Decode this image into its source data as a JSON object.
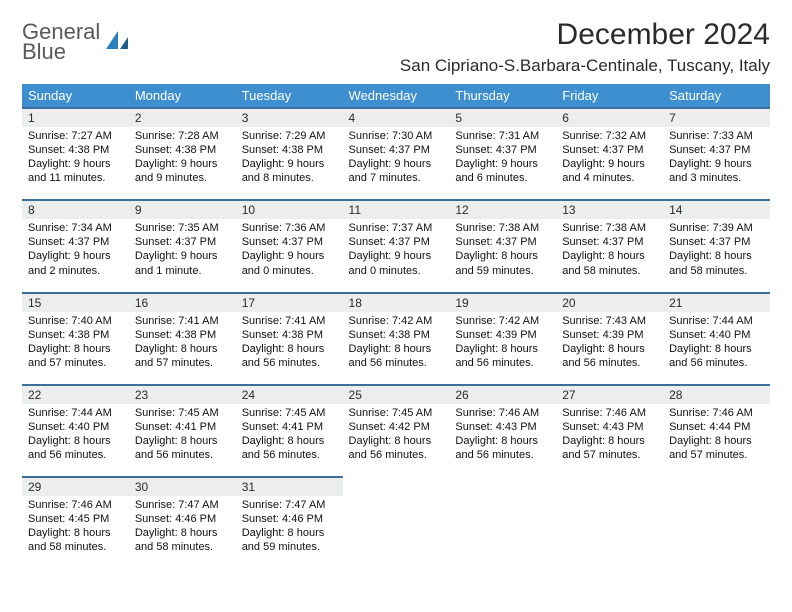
{
  "logo": {
    "word1": "General",
    "word2": "Blue"
  },
  "title": "December 2024",
  "location": "San Cipriano-S.Barbara-Centinale, Tuscany, Italy",
  "colors": {
    "header_bg": "#3d8fcf",
    "header_text": "#ffffff",
    "daynum_bg": "#eceded",
    "daynum_border": "#3d6f9e",
    "logo_gray": "#5a5a5a",
    "logo_blue": "#2a7fbf"
  },
  "day_headers": [
    "Sunday",
    "Monday",
    "Tuesday",
    "Wednesday",
    "Thursday",
    "Friday",
    "Saturday"
  ],
  "weeks": [
    [
      {
        "n": "1",
        "sunrise": "Sunrise: 7:27 AM",
        "sunset": "Sunset: 4:38 PM",
        "day": "Daylight: 9 hours and 11 minutes."
      },
      {
        "n": "2",
        "sunrise": "Sunrise: 7:28 AM",
        "sunset": "Sunset: 4:38 PM",
        "day": "Daylight: 9 hours and 9 minutes."
      },
      {
        "n": "3",
        "sunrise": "Sunrise: 7:29 AM",
        "sunset": "Sunset: 4:38 PM",
        "day": "Daylight: 9 hours and 8 minutes."
      },
      {
        "n": "4",
        "sunrise": "Sunrise: 7:30 AM",
        "sunset": "Sunset: 4:37 PM",
        "day": "Daylight: 9 hours and 7 minutes."
      },
      {
        "n": "5",
        "sunrise": "Sunrise: 7:31 AM",
        "sunset": "Sunset: 4:37 PM",
        "day": "Daylight: 9 hours and 6 minutes."
      },
      {
        "n": "6",
        "sunrise": "Sunrise: 7:32 AM",
        "sunset": "Sunset: 4:37 PM",
        "day": "Daylight: 9 hours and 4 minutes."
      },
      {
        "n": "7",
        "sunrise": "Sunrise: 7:33 AM",
        "sunset": "Sunset: 4:37 PM",
        "day": "Daylight: 9 hours and 3 minutes."
      }
    ],
    [
      {
        "n": "8",
        "sunrise": "Sunrise: 7:34 AM",
        "sunset": "Sunset: 4:37 PM",
        "day": "Daylight: 9 hours and 2 minutes."
      },
      {
        "n": "9",
        "sunrise": "Sunrise: 7:35 AM",
        "sunset": "Sunset: 4:37 PM",
        "day": "Daylight: 9 hours and 1 minute."
      },
      {
        "n": "10",
        "sunrise": "Sunrise: 7:36 AM",
        "sunset": "Sunset: 4:37 PM",
        "day": "Daylight: 9 hours and 0 minutes."
      },
      {
        "n": "11",
        "sunrise": "Sunrise: 7:37 AM",
        "sunset": "Sunset: 4:37 PM",
        "day": "Daylight: 9 hours and 0 minutes."
      },
      {
        "n": "12",
        "sunrise": "Sunrise: 7:38 AM",
        "sunset": "Sunset: 4:37 PM",
        "day": "Daylight: 8 hours and 59 minutes."
      },
      {
        "n": "13",
        "sunrise": "Sunrise: 7:38 AM",
        "sunset": "Sunset: 4:37 PM",
        "day": "Daylight: 8 hours and 58 minutes."
      },
      {
        "n": "14",
        "sunrise": "Sunrise: 7:39 AM",
        "sunset": "Sunset: 4:37 PM",
        "day": "Daylight: 8 hours and 58 minutes."
      }
    ],
    [
      {
        "n": "15",
        "sunrise": "Sunrise: 7:40 AM",
        "sunset": "Sunset: 4:38 PM",
        "day": "Daylight: 8 hours and 57 minutes."
      },
      {
        "n": "16",
        "sunrise": "Sunrise: 7:41 AM",
        "sunset": "Sunset: 4:38 PM",
        "day": "Daylight: 8 hours and 57 minutes."
      },
      {
        "n": "17",
        "sunrise": "Sunrise: 7:41 AM",
        "sunset": "Sunset: 4:38 PM",
        "day": "Daylight: 8 hours and 56 minutes."
      },
      {
        "n": "18",
        "sunrise": "Sunrise: 7:42 AM",
        "sunset": "Sunset: 4:38 PM",
        "day": "Daylight: 8 hours and 56 minutes."
      },
      {
        "n": "19",
        "sunrise": "Sunrise: 7:42 AM",
        "sunset": "Sunset: 4:39 PM",
        "day": "Daylight: 8 hours and 56 minutes."
      },
      {
        "n": "20",
        "sunrise": "Sunrise: 7:43 AM",
        "sunset": "Sunset: 4:39 PM",
        "day": "Daylight: 8 hours and 56 minutes."
      },
      {
        "n": "21",
        "sunrise": "Sunrise: 7:44 AM",
        "sunset": "Sunset: 4:40 PM",
        "day": "Daylight: 8 hours and 56 minutes."
      }
    ],
    [
      {
        "n": "22",
        "sunrise": "Sunrise: 7:44 AM",
        "sunset": "Sunset: 4:40 PM",
        "day": "Daylight: 8 hours and 56 minutes."
      },
      {
        "n": "23",
        "sunrise": "Sunrise: 7:45 AM",
        "sunset": "Sunset: 4:41 PM",
        "day": "Daylight: 8 hours and 56 minutes."
      },
      {
        "n": "24",
        "sunrise": "Sunrise: 7:45 AM",
        "sunset": "Sunset: 4:41 PM",
        "day": "Daylight: 8 hours and 56 minutes."
      },
      {
        "n": "25",
        "sunrise": "Sunrise: 7:45 AM",
        "sunset": "Sunset: 4:42 PM",
        "day": "Daylight: 8 hours and 56 minutes."
      },
      {
        "n": "26",
        "sunrise": "Sunrise: 7:46 AM",
        "sunset": "Sunset: 4:43 PM",
        "day": "Daylight: 8 hours and 56 minutes."
      },
      {
        "n": "27",
        "sunrise": "Sunrise: 7:46 AM",
        "sunset": "Sunset: 4:43 PM",
        "day": "Daylight: 8 hours and 57 minutes."
      },
      {
        "n": "28",
        "sunrise": "Sunrise: 7:46 AM",
        "sunset": "Sunset: 4:44 PM",
        "day": "Daylight: 8 hours and 57 minutes."
      }
    ],
    [
      {
        "n": "29",
        "sunrise": "Sunrise: 7:46 AM",
        "sunset": "Sunset: 4:45 PM",
        "day": "Daylight: 8 hours and 58 minutes."
      },
      {
        "n": "30",
        "sunrise": "Sunrise: 7:47 AM",
        "sunset": "Sunset: 4:46 PM",
        "day": "Daylight: 8 hours and 58 minutes."
      },
      {
        "n": "31",
        "sunrise": "Sunrise: 7:47 AM",
        "sunset": "Sunset: 4:46 PM",
        "day": "Daylight: 8 hours and 59 minutes."
      },
      null,
      null,
      null,
      null
    ]
  ]
}
